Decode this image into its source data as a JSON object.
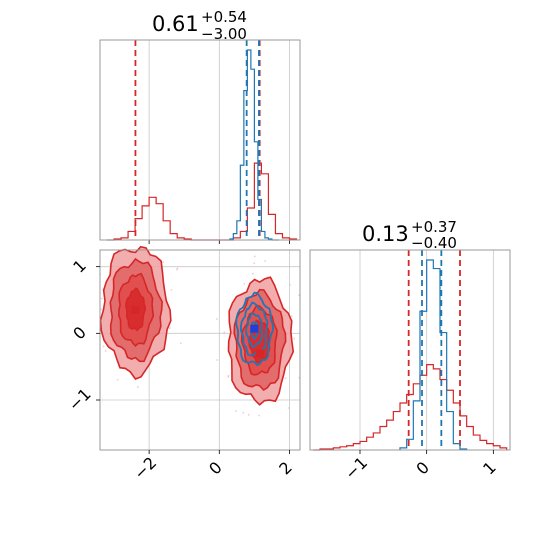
{
  "colors": {
    "red": "#d62728",
    "blue": "#1f77b4",
    "red_fill_light": "#f0a0a0",
    "red_fill_mid": "#e06060",
    "red_fill_dark": "#d62728"
  },
  "panels": {
    "top_left": {
      "title_main": "0.61",
      "title_sup": "+0.54",
      "title_sub": "−3.00"
    },
    "bottom_right": {
      "title_main": "0.13",
      "title_sup": "+0.37",
      "title_sub": "−0.40",
      "xticks": [
        "−1",
        "0",
        "1"
      ]
    },
    "bottom_left": {
      "xticks": [
        "−2",
        "0",
        "2"
      ],
      "yticks": [
        "1",
        "0",
        "−1"
      ]
    }
  },
  "chart_data": [
    {
      "type": "histogram",
      "panel": "top_left",
      "xlim": [
        -3.4,
        2.3
      ],
      "grid": true,
      "series": [
        {
          "color": "red",
          "bin_edges": [
            -3.2,
            -3.0,
            -2.8,
            -2.6,
            -2.4,
            -2.2,
            -2.0,
            -1.8,
            -1.6,
            -1.4,
            -1.2,
            -1.0,
            -0.8,
            -0.6,
            -0.4,
            -0.2,
            0.0,
            0.2,
            0.4,
            0.6,
            0.8,
            1.0,
            1.2,
            1.4,
            1.6,
            1.8,
            2.0,
            2.2
          ],
          "counts": [
            0,
            1,
            2,
            8,
            20,
            32,
            40,
            34,
            18,
            6,
            2,
            1,
            0,
            0,
            0,
            0,
            0,
            0,
            2,
            8,
            30,
            72,
            62,
            24,
            6,
            2,
            1
          ],
          "quantile_lines": [
            -2.39,
            1.15
          ]
        },
        {
          "color": "blue",
          "bin_edges": [
            0.3,
            0.4,
            0.5,
            0.6,
            0.7,
            0.8,
            0.9,
            1.0,
            1.1,
            1.2,
            1.3,
            1.4,
            1.5,
            1.6,
            1.7
          ],
          "counts": [
            1,
            6,
            18,
            70,
            140,
            178,
            160,
            92,
            38,
            8,
            2,
            1,
            0,
            0
          ],
          "quantile_lines": [
            0.78,
            1.13
          ]
        }
      ]
    },
    {
      "type": "histogram",
      "panel": "bottom_right",
      "xlim": [
        -1.75,
        1.25
      ],
      "grid": true,
      "series": [
        {
          "color": "red",
          "bin_edges": [
            -1.7,
            -1.6,
            -1.5,
            -1.4,
            -1.3,
            -1.2,
            -1.1,
            -1.0,
            -0.9,
            -0.8,
            -0.7,
            -0.6,
            -0.5,
            -0.4,
            -0.3,
            -0.2,
            -0.1,
            0.0,
            0.1,
            0.2,
            0.3,
            0.4,
            0.5,
            0.6,
            0.7,
            0.8,
            0.9,
            1.0,
            1.1,
            1.2
          ],
          "counts": [
            0,
            1,
            1,
            2,
            3,
            4,
            6,
            8,
            12,
            16,
            22,
            28,
            36,
            44,
            52,
            62,
            70,
            80,
            76,
            66,
            56,
            44,
            32,
            22,
            14,
            9,
            6,
            4,
            2
          ],
          "quantile_lines": [
            -0.27,
            0.5
          ]
        },
        {
          "color": "blue",
          "bin_edges": [
            -0.4,
            -0.3,
            -0.2,
            -0.1,
            0.0,
            0.1,
            0.2,
            0.3,
            0.4,
            0.5,
            0.6
          ],
          "counts": [
            2,
            10,
            46,
            130,
            178,
            170,
            110,
            36,
            6,
            1
          ],
          "quantile_lines": [
            -0.07,
            0.22
          ]
        }
      ]
    },
    {
      "type": "scatter",
      "panel": "bottom_left",
      "xlim": [
        -3.4,
        2.3
      ],
      "ylim": [
        -1.75,
        1.25
      ],
      "grid": true,
      "series": [
        {
          "color": "red",
          "kind": "filled_contours",
          "modes": [
            {
              "center": [
                -2.39,
                0.35
              ],
              "levels": [
                [
                  0.95,
                  0.95
                ],
                [
                  0.72,
                  0.74
                ],
                [
                  0.48,
                  0.52
                ],
                [
                  0.26,
                  0.3
                ]
              ]
            },
            {
              "center": [
                1.15,
                -0.12
              ],
              "levels": [
                [
                  0.9,
                  0.92
                ],
                [
                  0.7,
                  0.72
                ],
                [
                  0.48,
                  0.5
                ],
                [
                  0.28,
                  0.3
                ]
              ]
            }
          ],
          "marker": [
            1.15,
            -0.3
          ]
        },
        {
          "color": "blue",
          "kind": "contours",
          "modes": [
            {
              "center": [
                1.0,
                0.05
              ],
              "levels": [
                [
                  0.5,
                  0.52
                ],
                [
                  0.36,
                  0.38
                ],
                [
                  0.22,
                  0.24
                ],
                [
                  0.1,
                  0.12
                ]
              ]
            }
          ],
          "marker": [
            1.0,
            0.07
          ]
        }
      ],
      "red_marker_upper": [
        -2.39,
        0.35
      ]
    }
  ]
}
